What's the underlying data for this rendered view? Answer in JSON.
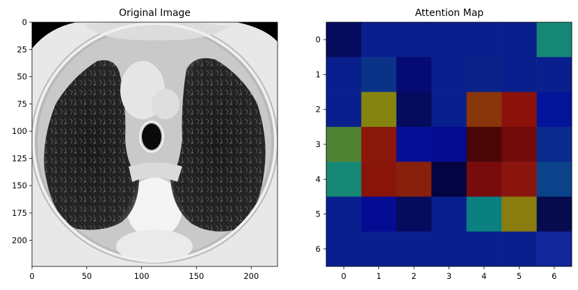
{
  "chart_data": [
    {
      "type": "image",
      "title": "Original Image",
      "image_description_icon": "ct-chest-axial-slice",
      "xlim": [
        0,
        224
      ],
      "ylim": [
        224,
        0
      ],
      "xticks": [
        "0",
        "50",
        "100",
        "150",
        "200"
      ],
      "yticks": [
        "0",
        "25",
        "50",
        "75",
        "100",
        "125",
        "150",
        "175",
        "200"
      ]
    },
    {
      "type": "heatmap",
      "title": "Attention Map",
      "colormap": "jet-like",
      "xticks": [
        "0",
        "1",
        "2",
        "3",
        "4",
        "5",
        "6"
      ],
      "yticks": [
        "0",
        "1",
        "2",
        "3",
        "4",
        "5",
        "6"
      ],
      "colors": [
        [
          "#050b5d",
          "#0a1f8e",
          "#0a1f8e",
          "#0a1f8e",
          "#0a1f8e",
          "#0a1f8e",
          "#158774"
        ],
        [
          "#0a1f8e",
          "#0a3388",
          "#050b72",
          "#0a1f8e",
          "#0a2288",
          "#0a1f8e",
          "#0a1f8e"
        ],
        [
          "#0a1f8e",
          "#858410",
          "#050b5d",
          "#0a1f8e",
          "#88350a",
          "#8a120b",
          "#04149a"
        ],
        [
          "#4f8333",
          "#89180a",
          "#050f96",
          "#050b8e",
          "#4a0606",
          "#710b0b",
          "#0a2a8e"
        ],
        [
          "#158774",
          "#89150a",
          "#87200d",
          "#050443",
          "#780b0b",
          "#8a150e",
          "#0a438a"
        ],
        [
          "#0a1f8e",
          "#050b92",
          "#050b5d",
          "#0a1f8e",
          "#0a8080",
          "#8a7d10",
          "#050b4d"
        ],
        [
          "#0a1f8e",
          "#0a1f8e",
          "#0a1f8e",
          "#0a1f8e",
          "#0a1f8e",
          "#0a1f8e",
          "#10269a"
        ]
      ]
    }
  ]
}
